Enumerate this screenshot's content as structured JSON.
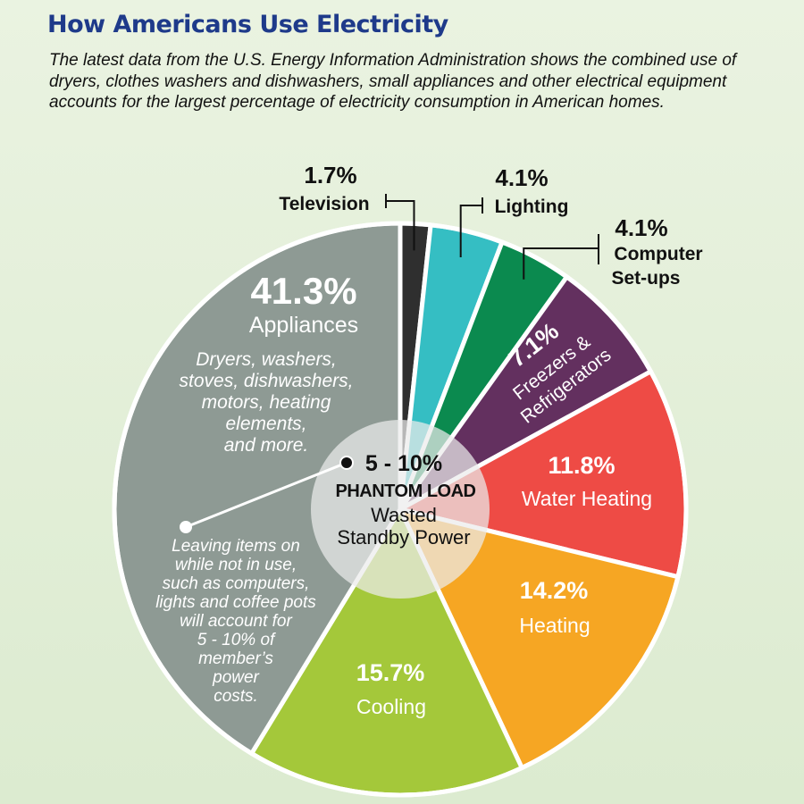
{
  "title": "How Americans Use Electricity",
  "subtitle": "The latest data from the U.S. Energy Information Administration shows the combined use of dryers, clothes washers and dishwashers, small appliances and other electrical equipment accounts for the largest percentage of electricity consumption in American homes.",
  "chart_data": {
    "type": "pie",
    "categories": [
      "Television",
      "Lighting",
      "Computer Set-ups",
      "Freezers & Refrigerators",
      "Water Heating",
      "Heating",
      "Cooling",
      "Appliances"
    ],
    "values": [
      1.7,
      4.1,
      4.1,
      7.1,
      11.8,
      14.2,
      15.7,
      41.3
    ],
    "value_labels": [
      "1.7%",
      "4.1%",
      "4.1%",
      "7.1%",
      "11.8%",
      "14.2%",
      "15.7%",
      "41.3%"
    ],
    "colors": [
      "#2f2f2f",
      "#35bec3",
      "#0b8a4f",
      "#63305f",
      "#ee4b45",
      "#f6a623",
      "#a4c83a",
      "#8e9a94"
    ],
    "appliances_note": [
      "Dryers, washers,",
      "stoves, dishwashers,",
      "motors, heating",
      "elements,",
      "and more."
    ],
    "phantom_load": {
      "percent": "5 - 10%",
      "label": "PHANTOM LOAD",
      "desc_lines": [
        "Wasted",
        "Standby Power"
      ],
      "note_lines": [
        "Leaving items on",
        "while not in use,",
        "such as computers,",
        "lights and coffee pots",
        "will account for",
        "5 - 10% of",
        "member’s",
        "power",
        "costs."
      ]
    }
  }
}
